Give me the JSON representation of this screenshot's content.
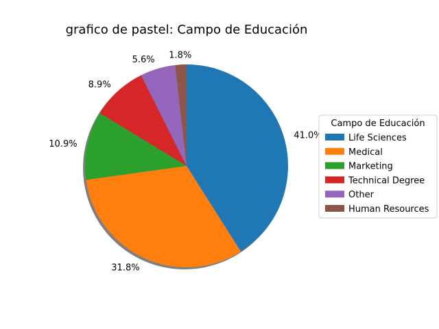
{
  "chart_data": {
    "type": "pie",
    "title": "grafico de pastel: Campo de Educación",
    "categories": [
      "Life Sciences",
      "Medical",
      "Marketing",
      "Technical Degree",
      "Other",
      "Human Resources"
    ],
    "values": [
      41.0,
      31.8,
      10.9,
      8.9,
      5.6,
      1.8
    ],
    "value_labels": [
      "41.0%",
      "31.8%",
      "10.9%",
      "8.9%",
      "5.6%",
      "1.8%"
    ],
    "colors": [
      "#1f77b4",
      "#ff7f0e",
      "#2ca02c",
      "#d62728",
      "#9467bd",
      "#8c564b"
    ],
    "start_angle_deg": 90,
    "direction": "clockwise",
    "shadow": true,
    "legend": {
      "title": "Campo de Educación",
      "placement": "center-right"
    }
  }
}
